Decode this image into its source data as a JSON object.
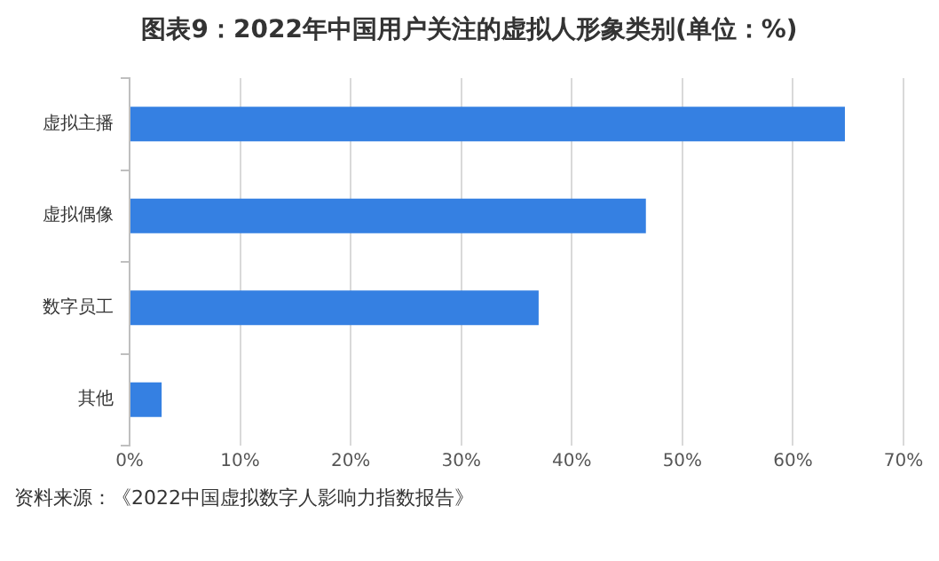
{
  "chart_data": {
    "type": "bar",
    "orientation": "horizontal",
    "title": "图表9：2022年中国用户关注的虚拟人形象类别(单位：%)",
    "categories": [
      "虚拟主播",
      "虚拟偶像",
      "数字员工",
      "其他"
    ],
    "values": [
      64.7,
      46.7,
      37.0,
      2.9
    ],
    "color": "#3580e2",
    "xlim": [
      0,
      70
    ],
    "xticks": [
      {
        "value": 0,
        "label": "0%"
      },
      {
        "value": 10,
        "label": "10%"
      },
      {
        "value": 20,
        "label": "20%"
      },
      {
        "value": 30,
        "label": "30%"
      },
      {
        "value": 40,
        "label": "40%"
      },
      {
        "value": 50,
        "label": "50%"
      },
      {
        "value": 60,
        "label": "60%"
      },
      {
        "value": 70,
        "label": "70%"
      }
    ],
    "grid": "x",
    "legend": false,
    "annotations": [
      "资料来源：《2022中国虚拟数字人影响力指数报告》"
    ]
  }
}
